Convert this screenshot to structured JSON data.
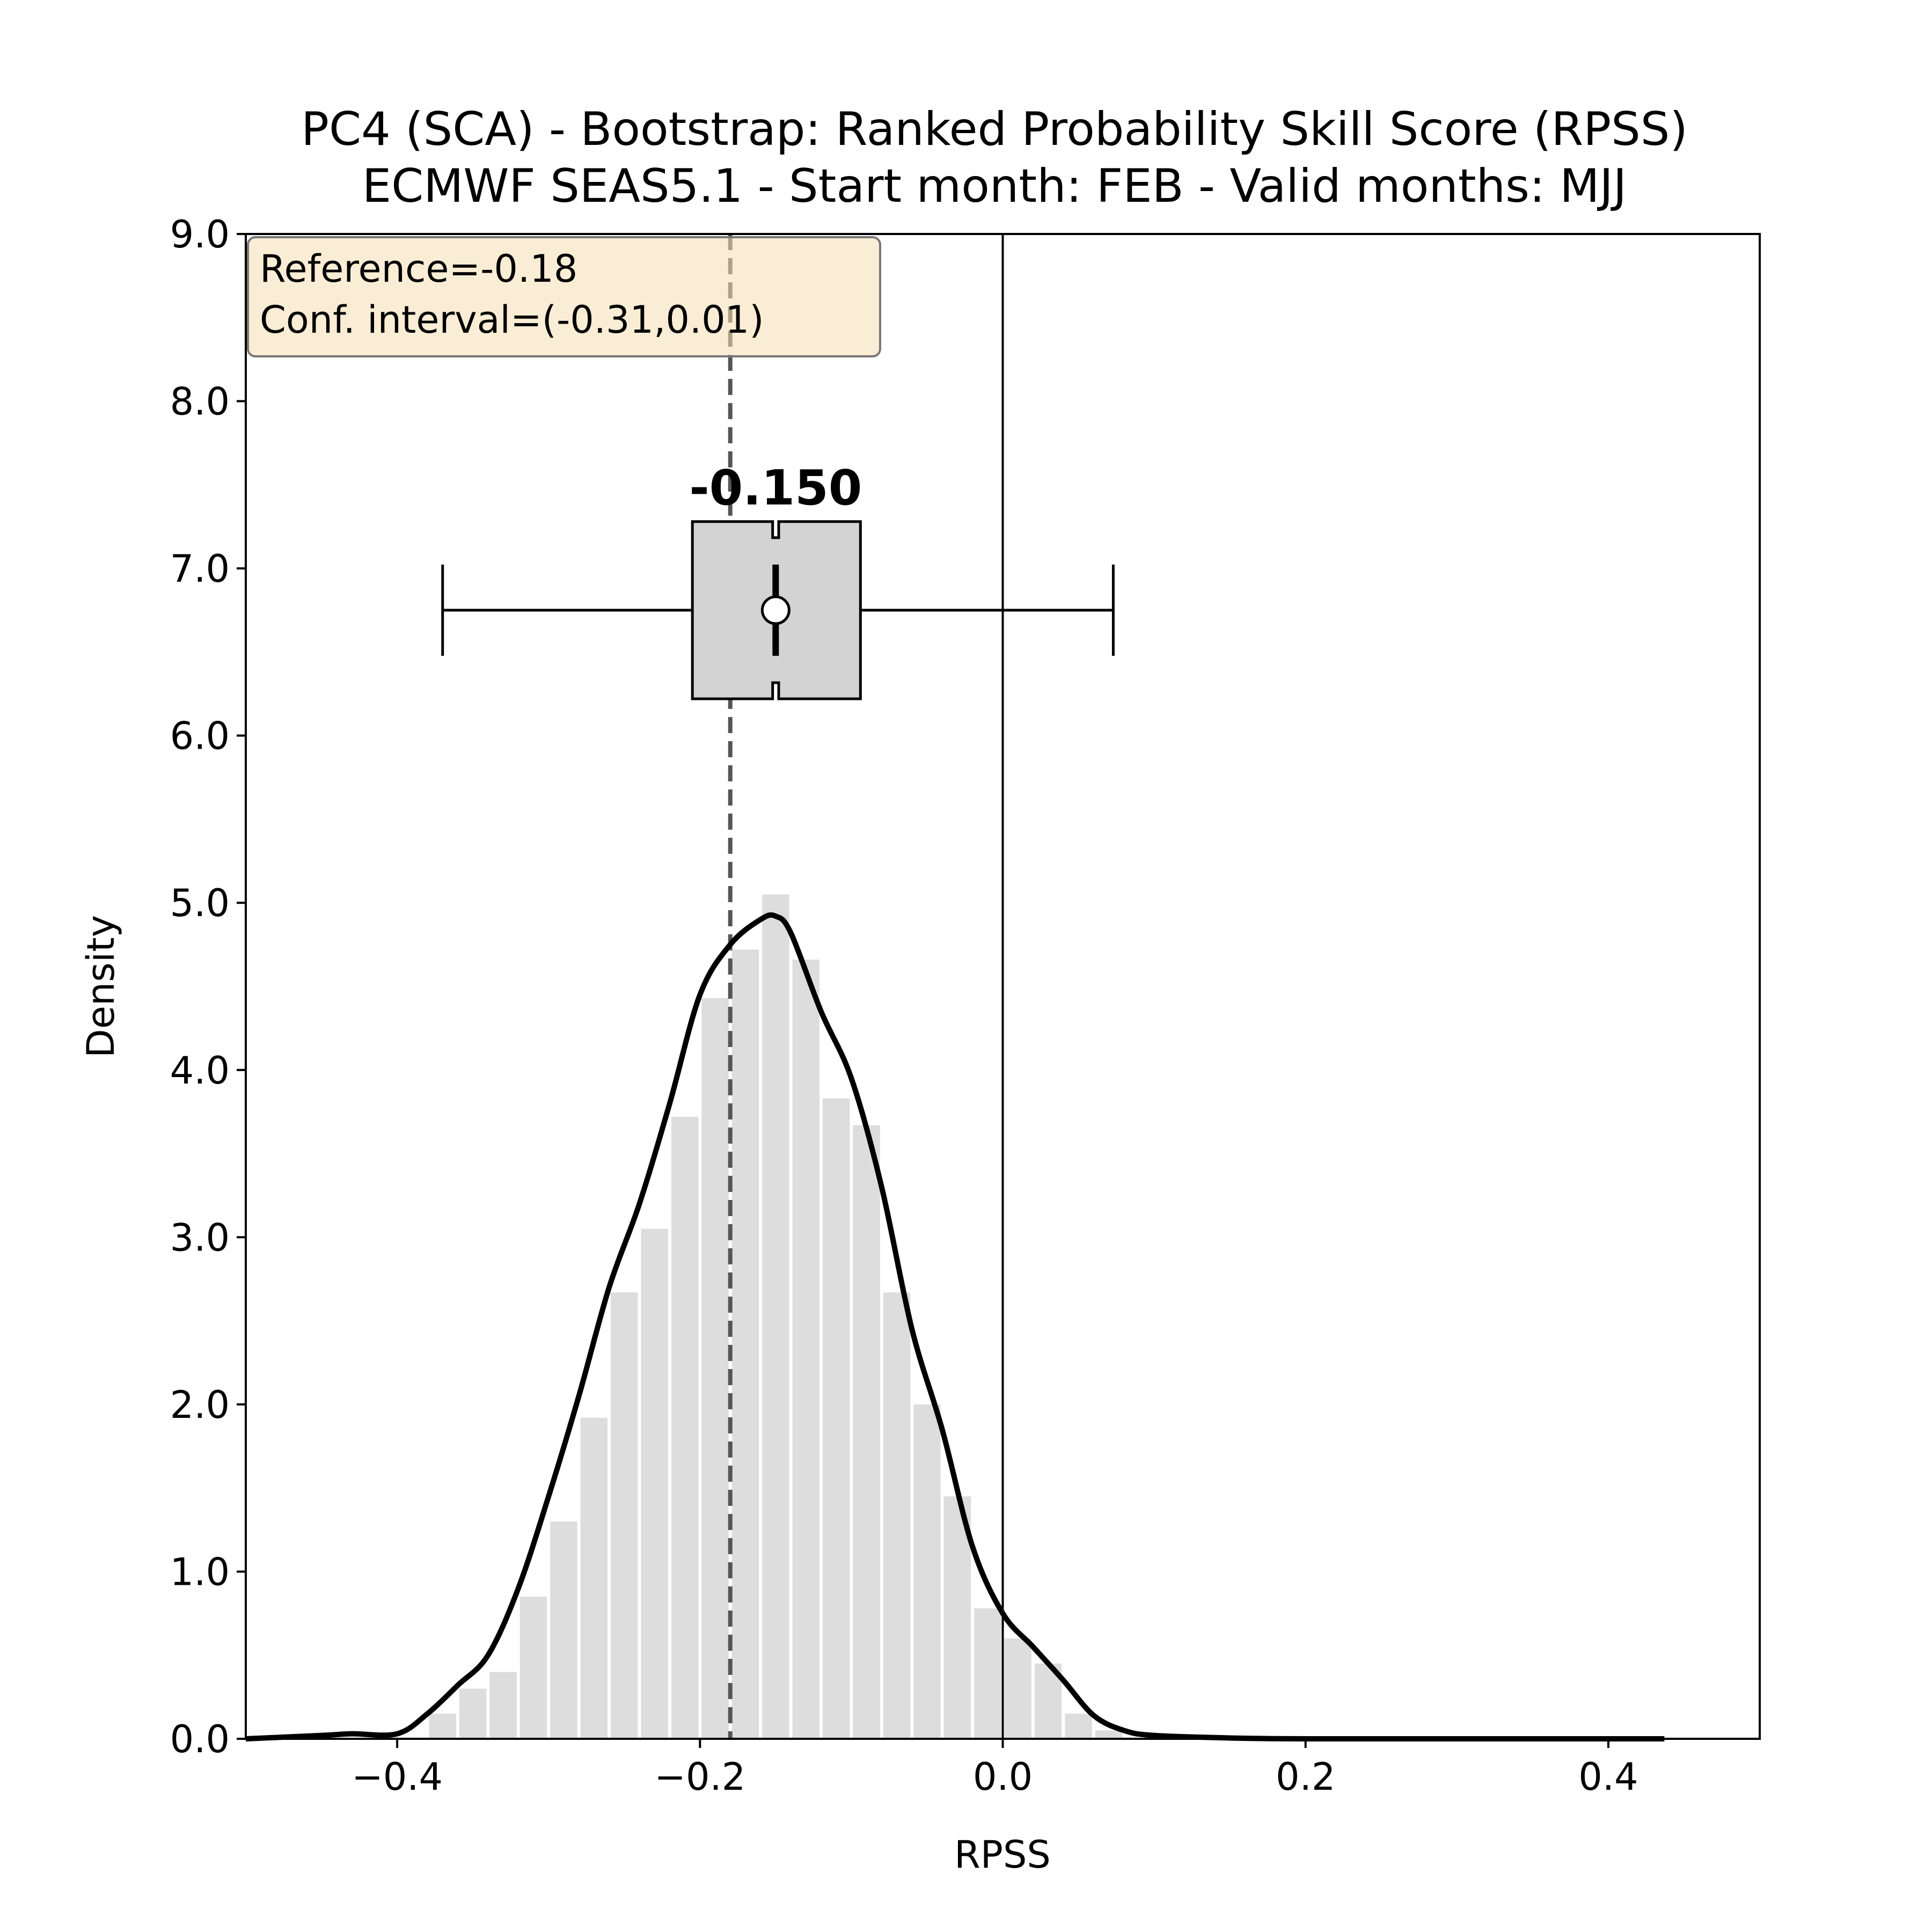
{
  "chart_data": {
    "type": "bar",
    "title": [
      "PC4 (SCA) - Bootstrap: Ranked Probability Skill Score (RPSS)",
      "ECMWF SEAS5.1 - Start month: FEB - Valid months: MJJ"
    ],
    "xlabel": "RPSS",
    "ylabel": "Density",
    "xlim": [
      -0.5,
      0.5
    ],
    "ylim": [
      0,
      9
    ],
    "xticks": [
      -0.4,
      -0.2,
      0.0,
      0.2,
      0.4
    ],
    "xtick_labels": [
      "−0.4",
      "−0.2",
      "0.0",
      "0.2",
      "0.4"
    ],
    "yticks": [
      0,
      1,
      2,
      3,
      4,
      5,
      6,
      7,
      8,
      9
    ],
    "ytick_labels": [
      "0.0",
      "1.0",
      "2.0",
      "3.0",
      "4.0",
      "5.0",
      "6.0",
      "7.0",
      "8.0",
      "9.0"
    ],
    "grid": false,
    "histogram": {
      "bin_width": 0.02,
      "bin_starts": [
        -0.38,
        -0.36,
        -0.34,
        -0.32,
        -0.3,
        -0.28,
        -0.26,
        -0.24,
        -0.22,
        -0.2,
        -0.18,
        -0.16,
        -0.14,
        -0.12,
        -0.1,
        -0.08,
        -0.06,
        -0.04,
        -0.02,
        0.0,
        0.02,
        0.04,
        0.06
      ],
      "values": [
        0.15,
        0.3,
        0.4,
        0.85,
        1.3,
        1.92,
        2.67,
        3.05,
        3.72,
        4.43,
        4.72,
        5.05,
        4.66,
        3.83,
        3.67,
        2.67,
        2.0,
        1.45,
        0.78,
        0.6,
        0.45,
        0.15,
        0.05
      ],
      "color": "#dddddd"
    },
    "kde": {
      "x": [
        -0.5,
        -0.45,
        -0.43,
        -0.4,
        -0.38,
        -0.36,
        -0.34,
        -0.32,
        -0.3,
        -0.28,
        -0.26,
        -0.24,
        -0.22,
        -0.2,
        -0.18,
        -0.16,
        -0.15,
        -0.14,
        -0.12,
        -0.1,
        -0.08,
        -0.06,
        -0.04,
        -0.02,
        0.0,
        0.02,
        0.04,
        0.06,
        0.08,
        0.1,
        0.15,
        0.2,
        0.3,
        0.437
      ],
      "y": [
        0.0,
        0.02,
        0.03,
        0.03,
        0.15,
        0.32,
        0.5,
        0.9,
        1.45,
        2.05,
        2.7,
        3.2,
        3.8,
        4.45,
        4.75,
        4.9,
        4.92,
        4.82,
        4.35,
        3.95,
        3.3,
        2.45,
        1.85,
        1.15,
        0.75,
        0.55,
        0.35,
        0.14,
        0.05,
        0.02,
        0.005,
        0.0,
        0.0,
        0.0
      ],
      "color": "#000000"
    },
    "reference_line": {
      "x": -0.18,
      "style": "dashed",
      "color": "#555555"
    },
    "zero_line": {
      "x": 0.0,
      "color": "#000000"
    },
    "boxplot": {
      "y_center": 6.75,
      "y_lower": 6.22,
      "y_upper": 7.28,
      "whisker_low": -0.37,
      "q1": -0.205,
      "median": -0.15,
      "mean": -0.15,
      "q3": -0.094,
      "whisker_high": 0.073,
      "notch_low": -0.152,
      "notch_high": -0.148,
      "label": "-0.150",
      "fill": "#d3d3d3"
    },
    "annotation": {
      "lines": [
        "Reference=-0.18",
        "Conf. interval=(-0.31,0.01)"
      ],
      "background": "#f5deb3"
    }
  }
}
